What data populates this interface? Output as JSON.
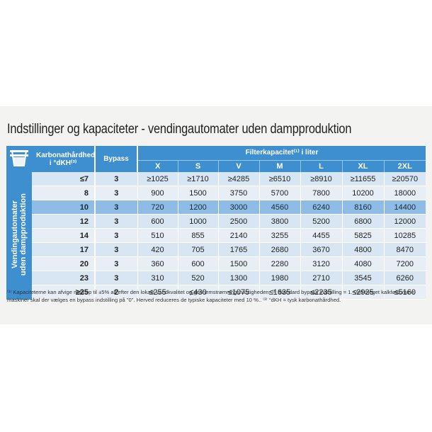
{
  "title": "Indstillinger og kapaciteter - vendingautomater uden dampproduktion",
  "header": {
    "hardness_label": "Karbonathårdhed i °dKH⁽³⁾",
    "bypass_label": "Bypass",
    "capacity_label": "Filterkapacitet⁽¹⁾ i liter",
    "sizes": [
      "X",
      "S",
      "V",
      "M",
      "L",
      "XL",
      "2XL"
    ]
  },
  "side_label_line1": "Vendingautomater",
  "side_label_line2": "uden dampproduktion",
  "rows": [
    {
      "kh": "≤7",
      "bypass": "3",
      "values": [
        "≥1025",
        "≥1710",
        "≥4285",
        "≥6510",
        "≥8910",
        "≥11655",
        "≥20570"
      ]
    },
    {
      "kh": "8",
      "bypass": "3",
      "values": [
        "900",
        "1500",
        "3750",
        "5700",
        "7800",
        "10200",
        "18000"
      ]
    },
    {
      "kh": "10",
      "bypass": "3",
      "values": [
        "720",
        "1200",
        "3000",
        "4560",
        "6240",
        "8160",
        "14400"
      ]
    },
    {
      "kh": "12",
      "bypass": "3",
      "values": [
        "600",
        "1000",
        "2500",
        "3800",
        "5200",
        "6800",
        "12000"
      ]
    },
    {
      "kh": "14",
      "bypass": "3",
      "values": [
        "510",
        "855",
        "2140",
        "3255",
        "4455",
        "5825",
        "10285"
      ]
    },
    {
      "kh": "17",
      "bypass": "3",
      "values": [
        "420",
        "705",
        "1765",
        "2680",
        "3670",
        "4800",
        "8470"
      ]
    },
    {
      "kh": "20",
      "bypass": "3",
      "values": [
        "360",
        "600",
        "1500",
        "2280",
        "3120",
        "4080",
        "7200"
      ]
    },
    {
      "kh": "23",
      "bypass": "3",
      "values": [
        "310",
        "520",
        "1300",
        "1980",
        "2710",
        "3545",
        "6260"
      ]
    },
    {
      "kh": "≥25",
      "bypass": "2",
      "values": [
        "≤255",
        "≤430",
        "≤1075",
        "≤1635",
        "≤2235",
        "≤2925",
        "≤5160"
      ]
    }
  ],
  "footnote": "⁽¹⁾ Kapaciteterne kan afvige med op til ±5% alt efter den lokale vandkvalitet og gennemstrømningshastigheden. ⁽²⁾ Standard bypass indstilling = 1. Ved meget kalkfølsomme maskiner skal der vælges en bypass indstilling på \"0\". Herved reduceres de typiske kapaciteter med 10 %.. ⁽³⁾ °dKH = tysk karbonathårdhed.",
  "colors": {
    "header_blue": "#3e8fd0",
    "row_light": "#d8e6f3",
    "row_alt": "#e7eef6",
    "row_highlight": "#8fbce4"
  }
}
